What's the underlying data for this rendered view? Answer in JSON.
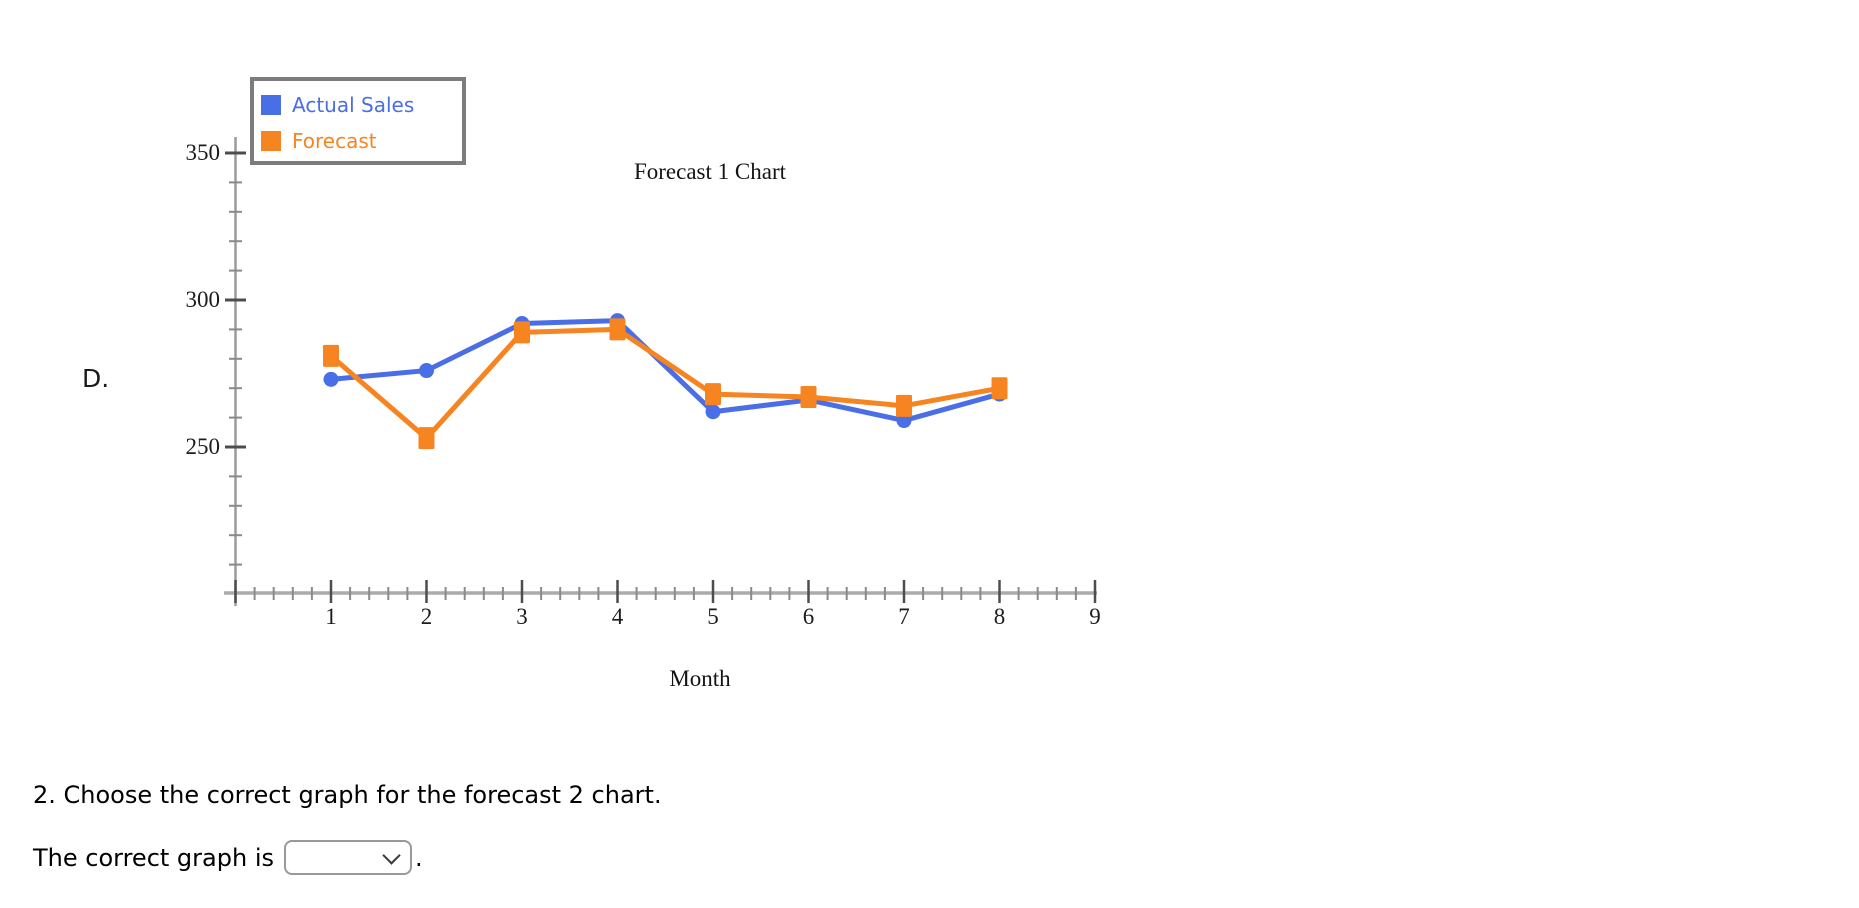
{
  "page": {
    "option_label": "D."
  },
  "chart_data": {
    "type": "line",
    "title": "Forecast 1 Chart",
    "xlabel": "Month",
    "ylabel": "",
    "x": [
      1,
      2,
      3,
      4,
      5,
      6,
      7,
      8
    ],
    "series": [
      {
        "name": "Actual Sales",
        "color": "#4a6ee5",
        "marker": "circle",
        "values": [
          273,
          276,
          292,
          293,
          262,
          266,
          259,
          268
        ]
      },
      {
        "name": "Forecast",
        "color": "#f68420",
        "marker": "square",
        "values": [
          281,
          253,
          289,
          290,
          268,
          267,
          264,
          270
        ]
      }
    ],
    "x_ticks": [
      1,
      2,
      3,
      4,
      5,
      6,
      7,
      8,
      9
    ],
    "y_ticks": [
      250,
      300,
      350
    ],
    "xlim": [
      0,
      9
    ],
    "ylim": [
      200,
      355
    ],
    "x_minor_step": 0.2,
    "y_minor_step": 10,
    "grid": false,
    "legend_position": "top-left",
    "legend": [
      {
        "label": "Actual Sales",
        "color": "#4a6ee5"
      },
      {
        "label": "Forecast",
        "color": "#f68420"
      }
    ]
  },
  "question": {
    "prompt": "2. Choose the correct graph for the forecast 2 chart.",
    "answer_prefix": "The correct graph is",
    "answer_suffix": ".",
    "select_value": ""
  }
}
